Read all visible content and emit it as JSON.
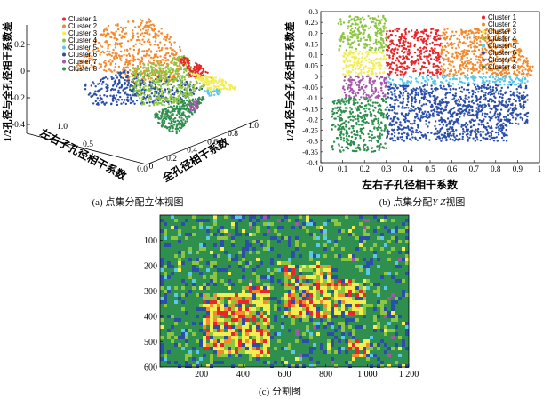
{
  "captions": {
    "a_prefix": "(a) ",
    "a_text": "点集分配立体视图",
    "b_prefix": "(b) ",
    "b_text1": "点集分配",
    "b_italic": "Y-Z",
    "b_text2": "视图",
    "c_prefix": "(c) ",
    "c_text": "分割图"
  },
  "colors": {
    "cluster1": "#e8262b",
    "cluster2": "#f28a2e",
    "cluster3": "#f2ee52",
    "cluster4": "#8cc63f",
    "cluster5": "#5bc8e8",
    "cluster6": "#2b4fa8",
    "cluster7": "#a556a8",
    "cluster8": "#2f8f4e"
  },
  "chart_data": [
    {
      "id": "a",
      "type": "scatter",
      "view": "3d",
      "title": "",
      "xlabel": "左右子孔径相干系数",
      "ylabel": "全孔径相干系数",
      "zlabel": "1/2孔径与全孔径相干系数差",
      "xlim": [
        0,
        1.0
      ],
      "ylim": [
        0,
        1.0
      ],
      "zlim": [
        -0.4,
        0.3
      ],
      "x_ticks": [
        "0.0",
        "0.5",
        "1.0"
      ],
      "y_ticks": [
        "0",
        "0.2",
        "0.4",
        "0.6",
        "0.8",
        "1.0"
      ],
      "z_ticks": [
        "-0.4",
        "-0.2",
        "0",
        "0.2"
      ],
      "legend": [
        "Cluster 1",
        "Cluster 2",
        "Cluster 3",
        "Cluster 4",
        "Cluster 5",
        "Cluster 6",
        "Cluster 7",
        "Cluster 8"
      ],
      "legend_position": "top-left"
    },
    {
      "id": "b",
      "type": "scatter",
      "title": "",
      "xlabel": "左右子孔径相干系数",
      "ylabel": "1/2孔径与全孔径相干系数差",
      "xlim": [
        0,
        1.0
      ],
      "ylim": [
        -0.4,
        0.3
      ],
      "x_ticks": [
        "0",
        "0.1",
        "0.2",
        "0.3",
        "0.4",
        "0.5",
        "0.6",
        "0.7",
        "0.8",
        "0.9",
        "1"
      ],
      "y_ticks": [
        "-0.4",
        "-0.35",
        "-0.3",
        "-0.25",
        "-0.2",
        "-0.15",
        "-0.1",
        "-0.05",
        "0",
        "0.05",
        "0.1",
        "0.15",
        "0.2",
        "0.25",
        "0.3"
      ],
      "legend": [
        "Cluster 1",
        "Cluster 2",
        "Cluster 3",
        "Cluster 4",
        "Cluster 5",
        "Cluster 6",
        "Cluster 7",
        "Cluster 8"
      ],
      "legend_position": "top-right",
      "clusters": [
        {
          "name": "Cluster 1",
          "x_range": [
            0.3,
            0.55
          ],
          "y_range": [
            0,
            0.22
          ]
        },
        {
          "name": "Cluster 2",
          "x_range": [
            0.55,
            0.97
          ],
          "y_range": [
            0,
            0.22
          ]
        },
        {
          "name": "Cluster 3",
          "x_range": [
            0.1,
            0.3
          ],
          "y_range": [
            0,
            0.12
          ]
        },
        {
          "name": "Cluster 4",
          "x_range": [
            0.08,
            0.3
          ],
          "y_range": [
            0.12,
            0.28
          ]
        },
        {
          "name": "Cluster 5",
          "x_range": [
            0.3,
            0.95
          ],
          "y_range": [
            -0.04,
            0
          ]
        },
        {
          "name": "Cluster 6",
          "x_range": [
            0.3,
            0.95
          ],
          "y_range": [
            -0.3,
            -0.04
          ]
        },
        {
          "name": "Cluster 7",
          "x_range": [
            0.1,
            0.3
          ],
          "y_range": [
            -0.1,
            0
          ]
        },
        {
          "name": "Cluster 8",
          "x_range": [
            0.05,
            0.3
          ],
          "y_range": [
            -0.35,
            -0.1
          ]
        }
      ]
    },
    {
      "id": "c",
      "type": "heatmap",
      "title": "",
      "xlim": [
        0,
        1200
      ],
      "ylim": [
        0,
        600
      ],
      "x_ticks": [
        "200",
        "400",
        "600",
        "800",
        "1 000",
        "1 200"
      ],
      "y_ticks": [
        "100",
        "200",
        "300",
        "400",
        "500",
        "600"
      ]
    }
  ]
}
